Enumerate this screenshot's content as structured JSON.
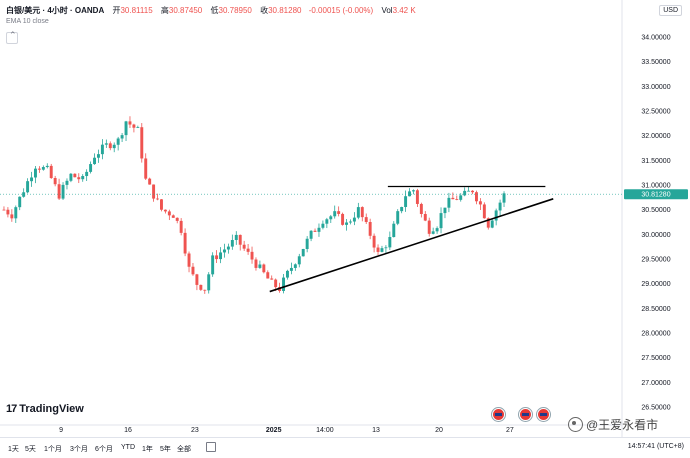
{
  "header": {
    "symbol": "白银/美元 · 4小时 · OANDA",
    "open_label": "开",
    "open_value": "30.81115",
    "high_label": "高",
    "high_value": "30.87450",
    "low_label": "低",
    "low_value": "30.78950",
    "close_label": "收",
    "close_value": "30.81280",
    "change": "-0.00015 (-0.00%)",
    "volume_label": "Vol",
    "volume_value": "3.42 K",
    "indicator": "EMA 10 close",
    "currency": "USD"
  },
  "colors": {
    "up": "#26a69a",
    "down": "#ef5350",
    "line": "#000000",
    "price_tag": "#26a69a"
  },
  "watermark": "@王爱永看市",
  "brand": "TradingView",
  "brand_mark": "17",
  "collapse_icon": "chevron-up-icon",
  "timeframes": [
    "1天",
    "5天",
    "1个月",
    "3个月",
    "6个月",
    "YTD",
    "1年",
    "5年",
    "全部"
  ],
  "clock": "14:57:41 (UTC+8)",
  "chart_data": {
    "type": "candlestick",
    "y_ticks": [
      "34.00000",
      "33.50000",
      "33.00000",
      "32.50000",
      "32.00000",
      "31.50000",
      "31.00000",
      "30.50000",
      "30.00000",
      "29.50000",
      "29.00000",
      "28.50000",
      "28.00000",
      "27.50000",
      "27.00000",
      "26.50000"
    ],
    "ylim": [
      26.5,
      34.0
    ],
    "x_ticks": [
      "9",
      "16",
      "23",
      "2025",
      "14:00",
      "13",
      "20",
      "27"
    ],
    "current_price": "30.81280",
    "waypoints": [
      [
        0,
        30.5
      ],
      [
        2,
        30.4
      ],
      [
        5,
        30.9
      ],
      [
        8,
        31.4
      ],
      [
        11,
        31.3
      ],
      [
        14,
        30.8
      ],
      [
        17,
        31.2
      ],
      [
        20,
        31.1
      ],
      [
        23,
        31.6
      ],
      [
        26,
        31.8
      ],
      [
        29,
        31.9
      ],
      [
        31,
        32.3
      ],
      [
        34,
        32.1
      ],
      [
        36,
        31.1
      ],
      [
        38,
        30.8
      ],
      [
        40,
        30.5
      ],
      [
        43,
        30.4
      ],
      [
        45,
        30.1
      ],
      [
        47,
        29.3
      ],
      [
        49,
        29.0
      ],
      [
        51,
        28.9
      ],
      [
        53,
        29.5
      ],
      [
        56,
        29.7
      ],
      [
        59,
        29.9
      ],
      [
        62,
        29.6
      ],
      [
        65,
        29.3
      ],
      [
        68,
        29.0
      ],
      [
        70,
        28.9
      ],
      [
        72,
        29.2
      ],
      [
        75,
        29.6
      ],
      [
        78,
        30.0
      ],
      [
        81,
        30.3
      ],
      [
        84,
        30.4
      ],
      [
        87,
        30.2
      ],
      [
        90,
        30.5
      ],
      [
        93,
        30.0
      ],
      [
        95,
        29.6
      ],
      [
        98,
        29.9
      ],
      [
        100,
        30.4
      ],
      [
        102,
        30.8
      ],
      [
        104,
        30.9
      ],
      [
        106,
        30.4
      ],
      [
        108,
        30.1
      ],
      [
        110,
        30.2
      ],
      [
        112,
        30.6
      ],
      [
        114,
        30.7
      ],
      [
        117,
        30.8
      ],
      [
        119,
        30.9
      ],
      [
        121,
        30.6
      ],
      [
        123,
        30.2
      ],
      [
        125,
        30.5
      ],
      [
        127,
        30.8
      ]
    ],
    "annotations": [
      {
        "type": "horizontal-segment",
        "name": "resistance",
        "y": 30.97,
        "x_from": 98,
        "x_to": 138
      },
      {
        "type": "trendline",
        "name": "support",
        "from": [
          68,
          28.84
        ],
        "to": [
          140,
          30.72
        ]
      }
    ],
    "grid": false
  }
}
